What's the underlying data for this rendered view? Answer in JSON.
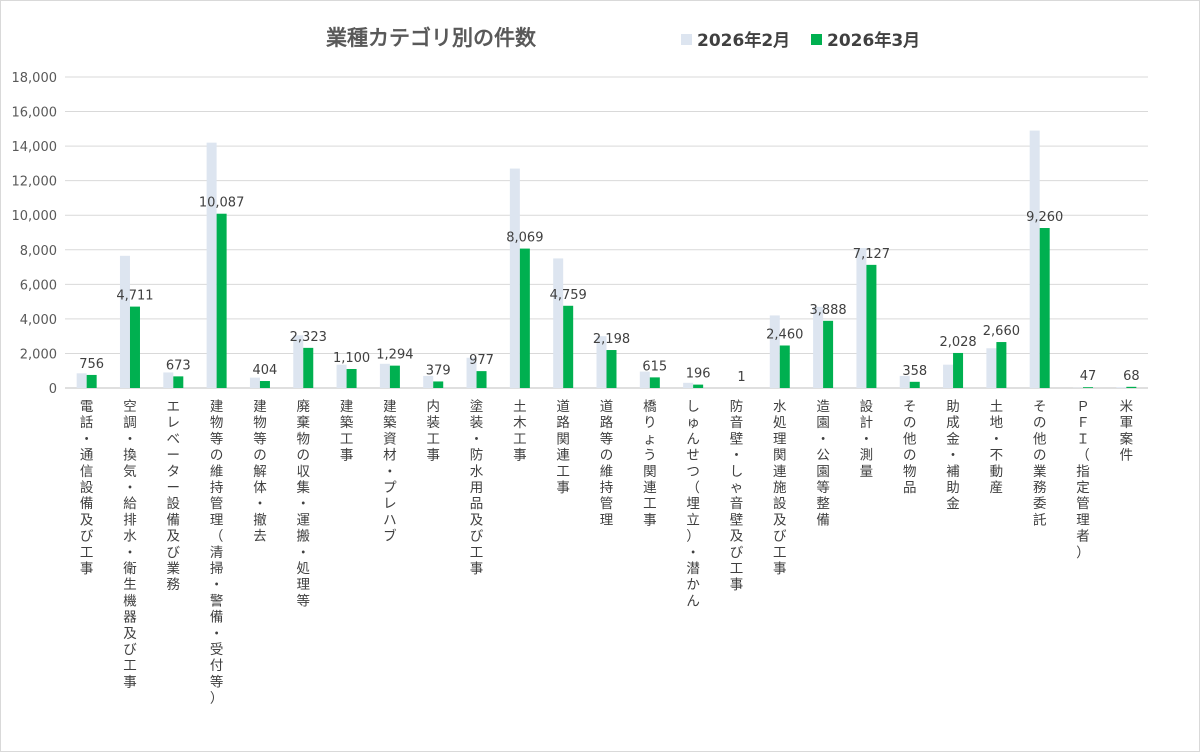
{
  "chart_data": {
    "type": "bar",
    "title": "業種カテゴリ別の件数",
    "categories": [
      "電話・通信設備及び工事",
      "空調・換気・給排水・衛生機器及び工事",
      "エレベーター設備及び業務",
      "建物等の維持管理（清掃・警備・受付等）",
      "建物等の解体・撤去",
      "廃棄物の収集・運搬・処理等",
      "建築工事",
      "建築資材・プレハブ",
      "内装工事",
      "塗装・防水用品及び工事",
      "土木工事",
      "道路関連工事",
      "道路等の維持管理",
      "橋りょう関連工事",
      "しゅんせつ（埋立）・潜かん",
      "防音壁・しゃ音壁及び工事",
      "水処理関連施設及び工事",
      "造園・公園等整備",
      "設計・測量",
      "その他の物品",
      "助成金・補助金",
      "土地・不動産",
      "その他の業務委託",
      "ＰＦＩ（指定管理者）",
      "米軍案件"
    ],
    "series": [
      {
        "name": "2026年2月",
        "color": "#dde5f0",
        "values": [
          850,
          7650,
          900,
          14200,
          600,
          3050,
          1350,
          1400,
          700,
          1750,
          12700,
          7500,
          3000,
          950,
          300,
          0,
          4200,
          4700,
          8100,
          700,
          1350,
          2300,
          14900,
          10,
          45
        ]
      },
      {
        "name": "2026年3月",
        "color": "#00b050",
        "values": [
          756,
          4711,
          673,
          10087,
          404,
          2323,
          1100,
          1294,
          379,
          977,
          8069,
          4759,
          2198,
          615,
          196,
          1,
          2460,
          3888,
          7127,
          358,
          2028,
          2660,
          9260,
          47,
          68
        ],
        "data_labels": [
          "756",
          "4,711",
          "673",
          "10,087",
          "404",
          "2,323",
          "1,100",
          "1,294",
          "379",
          "977",
          "8,069",
          "4,759",
          "2,198",
          "615",
          "196",
          "1",
          "2,460",
          "3,888",
          "7,127",
          "358",
          "2,028",
          "2,660",
          "9,260",
          "47",
          "68"
        ]
      }
    ],
    "ylim": [
      0,
      18000
    ],
    "yticks": [
      "0",
      "2,000",
      "4,000",
      "6,000",
      "8,000",
      "10,000",
      "12,000",
      "14,000",
      "16,000",
      "18,000"
    ],
    "xlabel": "",
    "ylabel": "",
    "grid": true,
    "legend": "top-right"
  }
}
